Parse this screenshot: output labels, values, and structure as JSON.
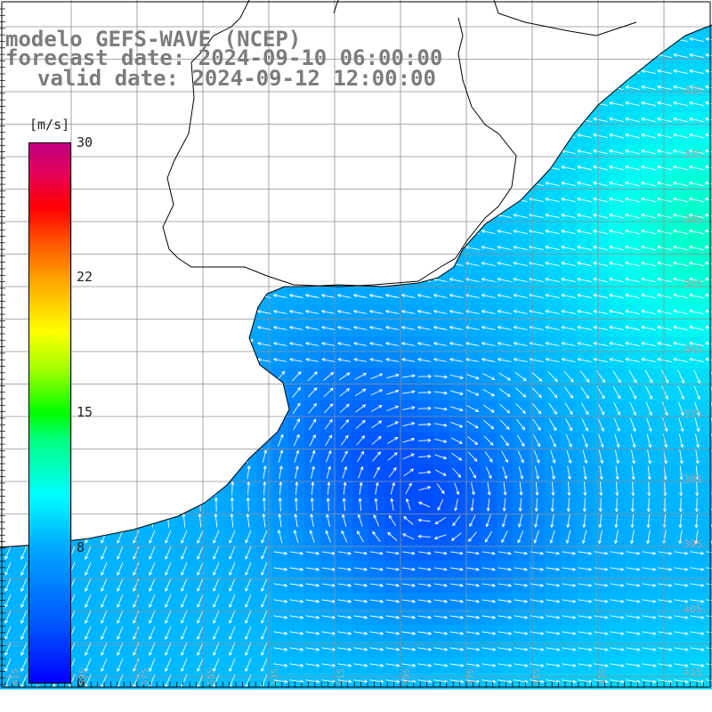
{
  "header": {
    "model_line": "modelo GEFS-WAVE (NCEP)",
    "forecast_line": "forecast date: 2024-09-10 06:00:00",
    "valid_line": "valid date: 2024-09-12 12:00:00"
  },
  "colorbar": {
    "unit": "[m/s]",
    "ticks": [
      "30",
      "22",
      "15",
      "8",
      "0"
    ],
    "tick_values": [
      30,
      22,
      15,
      8,
      0
    ]
  },
  "axes": {
    "lat_labels": [
      "325",
      "335",
      "345",
      "355",
      "365",
      "375",
      "385",
      "395",
      "405",
      "415"
    ],
    "lon_labels": [
      "615",
      "595",
      "575",
      "555",
      "535",
      "515",
      "495",
      "475",
      "455",
      "435"
    ]
  },
  "colors": {
    "land": "#ffffff",
    "coast": "#000000",
    "grid": "#909090",
    "arrow": "#ffffff",
    "title": "#7c7c7c"
  },
  "icons": {
    "wind_vector": "arrow-icon"
  }
}
